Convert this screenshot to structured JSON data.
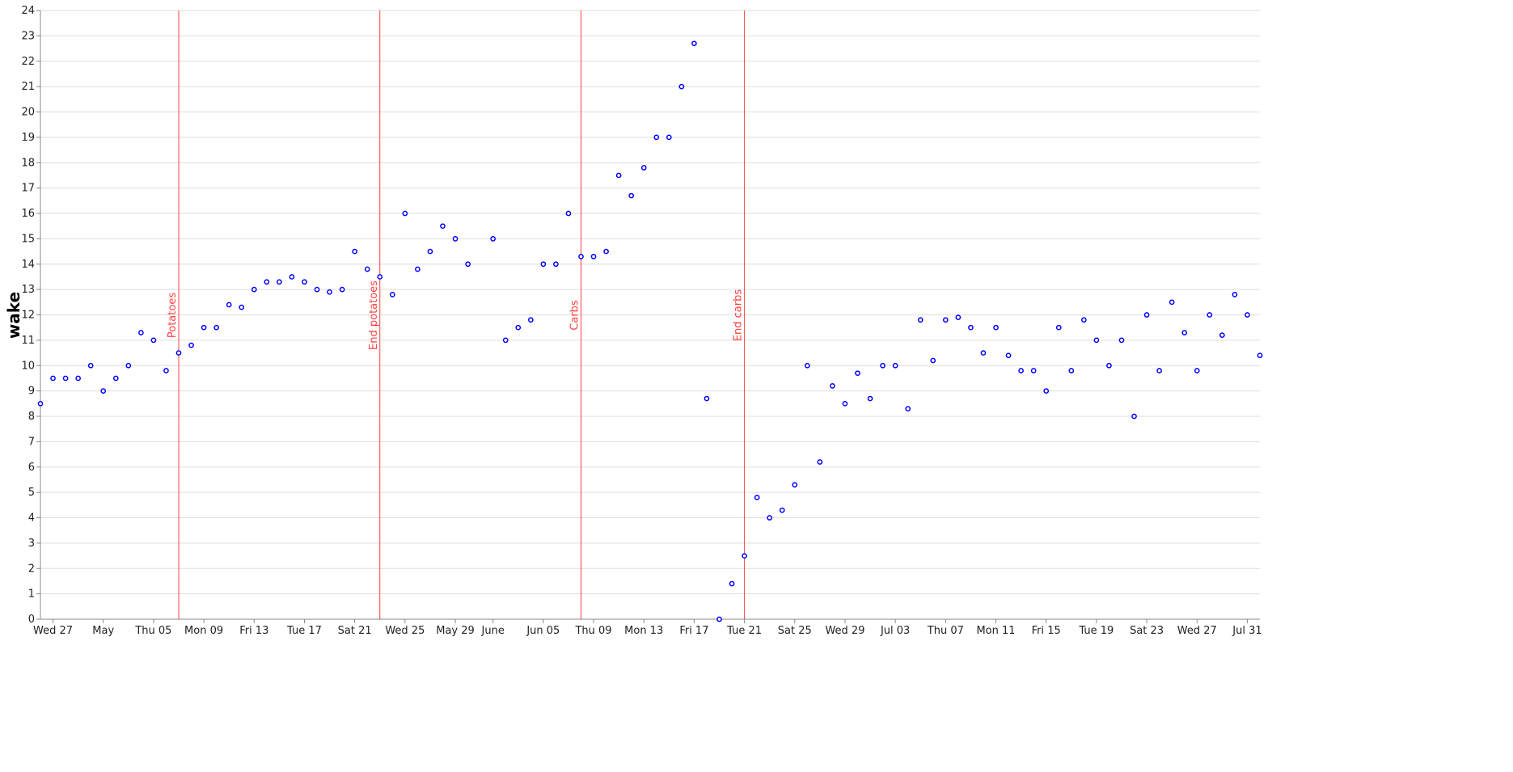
{
  "chart_data": {
    "type": "scatter",
    "y_label": "wake",
    "color": "#0000ff",
    "x": [
      "04-26",
      "04-27",
      "04-28",
      "04-29",
      "04-30",
      "05-01",
      "05-02",
      "05-03",
      "05-04",
      "05-05",
      "05-06",
      "05-07",
      "05-08",
      "05-09",
      "05-10",
      "05-11",
      "05-12",
      "05-13",
      "05-14",
      "05-15",
      "05-16",
      "05-17",
      "05-18",
      "05-19",
      "05-20",
      "05-21",
      "05-22",
      "05-23",
      "05-24",
      "05-25",
      "05-26",
      "05-27",
      "05-28",
      "05-29",
      "05-30",
      "06-01",
      "06-02",
      "06-03",
      "06-04",
      "06-05",
      "06-06",
      "06-07",
      "06-08",
      "06-09",
      "06-10",
      "06-11",
      "06-12",
      "06-13",
      "06-14",
      "06-15",
      "06-16",
      "06-17",
      "06-18",
      "06-19",
      "06-20",
      "06-21",
      "06-22",
      "06-23",
      "06-24",
      "06-25",
      "06-26",
      "06-27",
      "06-28",
      "06-29",
      "06-30",
      "07-01",
      "07-02",
      "07-03",
      "07-04",
      "07-05",
      "07-06",
      "07-07",
      "07-08",
      "07-09",
      "07-10",
      "07-11",
      "07-12",
      "07-13",
      "07-14",
      "07-15",
      "07-16",
      "07-17",
      "07-18",
      "07-19",
      "07-20",
      "07-21",
      "07-22",
      "07-23",
      "07-24",
      "07-25",
      "07-26",
      "07-27",
      "07-28",
      "07-29",
      "07-30",
      "07-31",
      "08-01"
    ],
    "values": [
      8.5,
      9.5,
      9.5,
      9.5,
      10,
      9,
      9.5,
      10,
      11.3,
      11,
      9.8,
      10.5,
      10.8,
      11.5,
      11.5,
      12.4,
      12.3,
      13,
      13.3,
      13.3,
      13.5,
      13.3,
      13,
      12.9,
      13,
      14.5,
      13.8,
      13.5,
      12.8,
      16,
      13.8,
      14.5,
      15.5,
      15,
      14,
      15,
      11,
      11.5,
      11.8,
      14,
      14,
      16,
      14.3,
      14.3,
      14.5,
      17.5,
      16.7,
      17.8,
      19,
      19,
      21,
      22.7,
      8.7,
      0,
      1.4,
      2.5,
      4.8,
      4,
      4.3,
      5.3,
      10,
      6.2,
      9.2,
      8.5,
      9.7,
      8.7,
      10,
      10,
      8.3,
      11.8,
      10.2,
      11.8,
      11.9,
      11.5,
      10.5,
      11.5,
      10.4,
      9.8,
      9.8,
      9,
      11.5,
      9.8,
      11.8,
      11,
      10,
      11,
      8,
      12,
      9.8,
      12.5,
      11.3,
      9.8,
      12,
      11.2,
      12.8,
      12,
      10.4
    ],
    "xlim": [
      "04-26",
      "08-01"
    ],
    "xticks": [
      {
        "value": "04-27",
        "label": "Wed 27"
      },
      {
        "value": "05-01",
        "label": "May"
      },
      {
        "value": "05-05",
        "label": "Thu 05"
      },
      {
        "value": "05-09",
        "label": "Mon 09"
      },
      {
        "value": "05-13",
        "label": "Fri 13"
      },
      {
        "value": "05-17",
        "label": "Tue 17"
      },
      {
        "value": "05-21",
        "label": "Sat 21"
      },
      {
        "value": "05-25",
        "label": "Wed 25"
      },
      {
        "value": "05-29",
        "label": "May 29"
      },
      {
        "value": "06-01",
        "label": "June"
      },
      {
        "value": "06-05",
        "label": "Jun 05"
      },
      {
        "value": "06-09",
        "label": "Thu 09"
      },
      {
        "value": "06-13",
        "label": "Mon 13"
      },
      {
        "value": "06-17",
        "label": "Fri 17"
      },
      {
        "value": "06-21",
        "label": "Tue 21"
      },
      {
        "value": "06-25",
        "label": "Sat 25"
      },
      {
        "value": "06-29",
        "label": "Wed 29"
      },
      {
        "value": "07-03",
        "label": "Jul 03"
      },
      {
        "value": "07-07",
        "label": "Thu 07"
      },
      {
        "value": "07-11",
        "label": "Mon 11"
      },
      {
        "value": "07-15",
        "label": "Fri 15"
      },
      {
        "value": "07-19",
        "label": "Tue 19"
      },
      {
        "value": "07-23",
        "label": "Sat 23"
      },
      {
        "value": "07-27",
        "label": "Wed 27"
      },
      {
        "value": "07-31",
        "label": "Jul 31"
      }
    ],
    "ylim": [
      0,
      24
    ],
    "yticks": [
      0,
      1,
      2,
      3,
      4,
      5,
      6,
      7,
      8,
      9,
      10,
      11,
      12,
      13,
      14,
      15,
      16,
      17,
      18,
      19,
      20,
      21,
      22,
      23,
      24
    ],
    "grid": true,
    "rules": [
      {
        "x": "05-07",
        "label": "Potatoes",
        "color": "#ff4040"
      },
      {
        "x": "05-23",
        "label": "End potatoes",
        "color": "#ff4040"
      },
      {
        "x": "06-08",
        "label": "Carbs",
        "color": "#ff4040"
      },
      {
        "x": "06-21",
        "label": "End carbs",
        "color": "#ff4040"
      }
    ]
  }
}
